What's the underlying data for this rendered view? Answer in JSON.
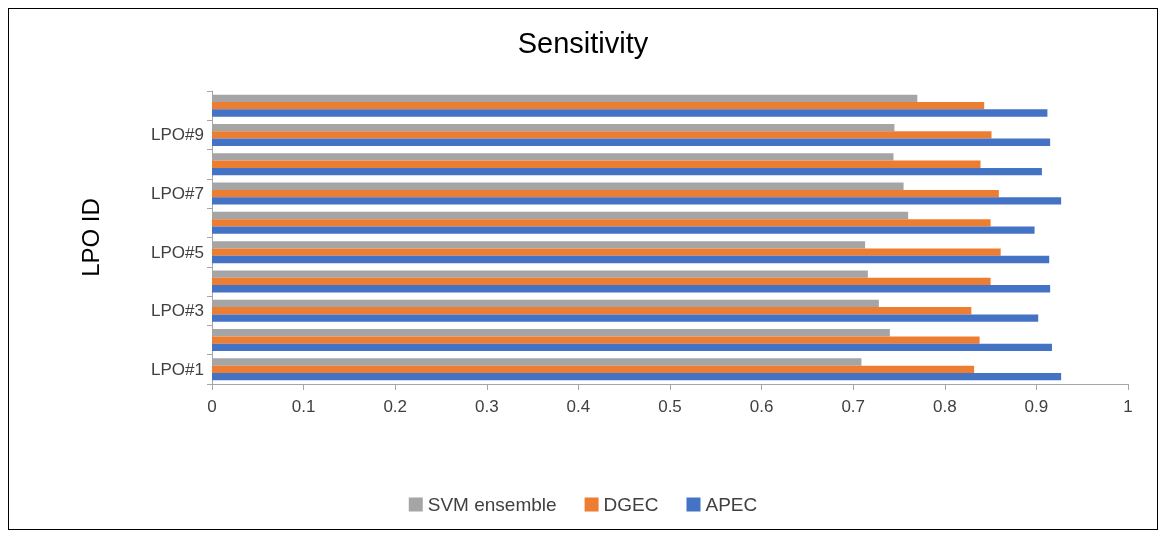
{
  "chart_data": {
    "type": "bar",
    "orientation": "horizontal",
    "title": "Sensitivity",
    "ylabel": "LPO ID",
    "categories": [
      null,
      "LPO#9",
      null,
      "LPO#7",
      null,
      "LPO#5",
      null,
      "LPO#3",
      null,
      "LPO#1"
    ],
    "series": [
      {
        "name": "SVM ensemble",
        "color": "#a5a5a5",
        "values": [
          0.77,
          0.745,
          0.744,
          0.755,
          0.76,
          0.713,
          0.716,
          0.728,
          0.74,
          0.709
        ]
      },
      {
        "name": "DGEC",
        "color": "#ed7d31",
        "values": [
          0.843,
          0.851,
          0.839,
          0.859,
          0.85,
          0.861,
          0.85,
          0.829,
          0.838,
          0.832
        ]
      },
      {
        "name": "APEC",
        "color": "#4472c4",
        "values": [
          0.912,
          0.915,
          0.906,
          0.927,
          0.898,
          0.914,
          0.915,
          0.902,
          0.917,
          0.927
        ]
      }
    ],
    "xlim": [
      0,
      1
    ],
    "xticks": [
      0,
      0.1,
      0.2,
      0.3,
      0.4,
      0.5,
      0.6,
      0.7,
      0.8,
      0.9,
      1
    ],
    "grid": false,
    "legend": "bottom"
  }
}
